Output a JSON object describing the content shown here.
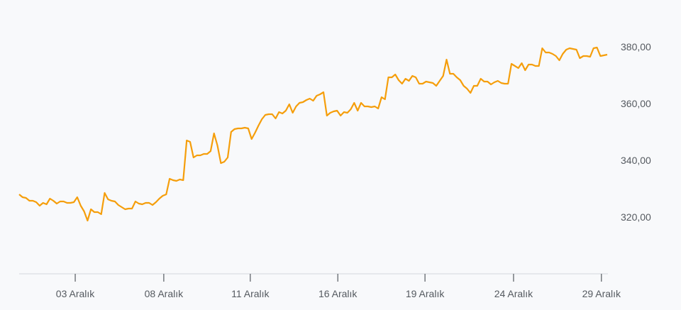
{
  "chart_data": {
    "type": "line",
    "title": "",
    "xlabel": "",
    "ylabel": "",
    "ylim": [
      300,
      392
    ],
    "y_ticks": [
      {
        "value": 320,
        "label": "320,00"
      },
      {
        "value": 340,
        "label": "340,00"
      },
      {
        "value": 360,
        "label": "360,00"
      },
      {
        "value": 380,
        "label": "380,00"
      }
    ],
    "x_ticks": [
      {
        "index": 16.4,
        "label": "03 Aralık"
      },
      {
        "index": 42.3,
        "label": "08 Aralık"
      },
      {
        "index": 67.6,
        "label": "11 Aralık"
      },
      {
        "index": 93.2,
        "label": "16 Aralık"
      },
      {
        "index": 118.7,
        "label": "19 Aralık"
      },
      {
        "index": 144.6,
        "label": "24 Aralık"
      },
      {
        "index": 170.3,
        "label": "29 Aralık"
      }
    ],
    "grid": false,
    "colors": {
      "line": "#f59e0b",
      "axis": "#d5d8dc",
      "text": "#555a60"
    },
    "series": [
      {
        "values": [
          328,
          327,
          326.75,
          325.75,
          325.75,
          325.25,
          324,
          325,
          324.5,
          326.5,
          325.75,
          324.75,
          325.5,
          325.5,
          325,
          325,
          325.25,
          327,
          324,
          322,
          318.75,
          322.75,
          321.75,
          321.75,
          321,
          328.5,
          326.25,
          325.75,
          325.5,
          324.25,
          323.5,
          322.75,
          323,
          323,
          325.5,
          324.75,
          324.5,
          325,
          325,
          324.25,
          325.25,
          326.5,
          327.5,
          328,
          333.5,
          333,
          332.75,
          333.25,
          333,
          347,
          346.5,
          341,
          341.75,
          341.75,
          342.25,
          342.25,
          343.25,
          349.5,
          345.25,
          339,
          339.5,
          341,
          350,
          351,
          351.25,
          351.25,
          351.5,
          351.25,
          347.5,
          349.75,
          352.25,
          354.5,
          356,
          356.25,
          356.25,
          354.75,
          357,
          356.5,
          357.5,
          359.75,
          356.75,
          359,
          360.25,
          360.5,
          361.25,
          361.75,
          361,
          362.75,
          363.25,
          364,
          355.75,
          356.75,
          357.25,
          357.5,
          355.75,
          357,
          356.75,
          358,
          360.25,
          357.5,
          360.25,
          359,
          359,
          358.75,
          359,
          358.25,
          362.25,
          361.5,
          369.25,
          369.25,
          370.25,
          368.25,
          367,
          368.75,
          368,
          369.75,
          369.25,
          367,
          367,
          367.75,
          367.5,
          367.25,
          366.25,
          368,
          369.75,
          375.5,
          370.5,
          370.5,
          369.25,
          368.25,
          366.25,
          365.25,
          363.75,
          366.25,
          366.25,
          368.75,
          367.75,
          367.75,
          366.75,
          367.5,
          368,
          367.25,
          367,
          367,
          374,
          373.25,
          372.5,
          374.25,
          371.75,
          373.75,
          373.75,
          373.25,
          373.25,
          379.5,
          378,
          378,
          377.5,
          376.75,
          375.25,
          377.5,
          379,
          379.5,
          379.25,
          379,
          376,
          376.75,
          376.75,
          376.5,
          379.5,
          379.75,
          376.75,
          377,
          377.25
        ]
      }
    ]
  }
}
